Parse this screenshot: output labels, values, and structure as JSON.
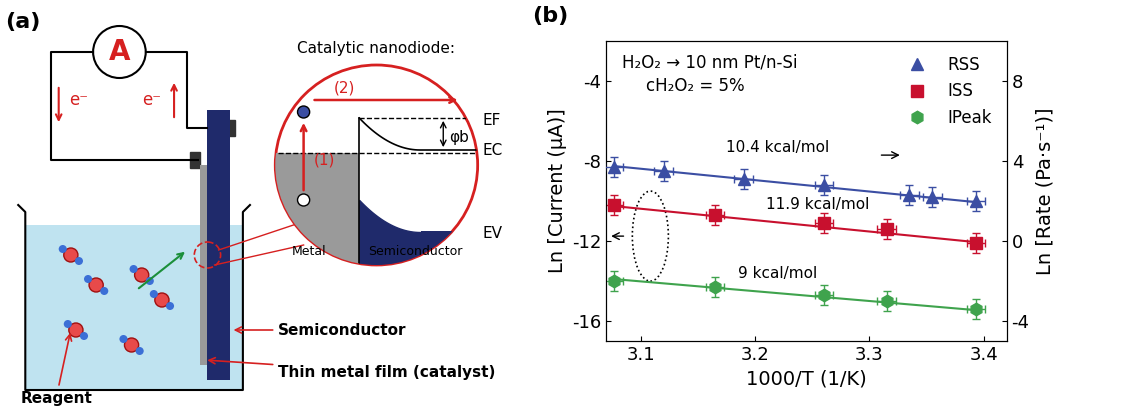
{
  "panel_a": {
    "label": "(a)",
    "ammeter": "A",
    "electrons": [
      "e⁻",
      "e⁻"
    ],
    "inset_title": "Catalytic nanodiode:",
    "steps": [
      "(1)",
      "(2)"
    ],
    "barrier": "φb",
    "levels": [
      "EC",
      "EF",
      "EV"
    ],
    "inset_metal": "Metal",
    "inset_semiconductor": "Semiconductor",
    "semiconductor": "Semiconductor",
    "film": "Thin metal film (catalyst)",
    "reagent": "Reagent"
  },
  "chart_data": {
    "type": "scatter",
    "panel_label": "(b)",
    "annotations": [
      "H₂O₂ → 10 nm Pt/n-Si",
      "cH₂O₂ = 5%"
    ],
    "xlabel": "1000/T (1/K)",
    "ylabel": "Ln [Current (μA)]",
    "y2label": "Ln [Rate (Pa·s⁻¹)]",
    "xlim": [
      3.07,
      3.42
    ],
    "xticks": [
      3.1,
      3.2,
      3.3,
      3.4
    ],
    "ylim": [
      -17,
      -2
    ],
    "yticks": [
      -16,
      -12,
      -8,
      -4
    ],
    "y2lim": [
      -5,
      10
    ],
    "y2ticks": [
      -4,
      0,
      4,
      8
    ],
    "legend": "upper right",
    "series": [
      {
        "name": "RSS",
        "color": "#3b4ea3",
        "marker": "triangle",
        "axis": "y2",
        "x": [
          3.077,
          3.12,
          3.19,
          3.26,
          3.335,
          3.355,
          3.393
        ],
        "values": [
          3.7,
          3.5,
          3.1,
          2.8,
          2.3,
          2.2,
          2.0
        ],
        "x_error": 0.008,
        "y_error": 0.5,
        "fit_x": [
          3.077,
          3.393
        ],
        "fit_values": [
          3.75,
          1.95
        ],
        "slope_label": "10.4 kcal/mol"
      },
      {
        "name": "ISS",
        "color": "#c8102e",
        "marker": "square",
        "axis": "y",
        "x": [
          3.077,
          3.165,
          3.26,
          3.315,
          3.393
        ],
        "values": [
          -10.2,
          -10.7,
          -11.1,
          -11.4,
          -12.1
        ],
        "x_error": 0.008,
        "y_error": 0.5,
        "fit_x": [
          3.077,
          3.393
        ],
        "fit_values": [
          -10.25,
          -12.05
        ],
        "slope_label": "11.9 kcal/mol"
      },
      {
        "name": "IPeak",
        "color": "#3fa34d",
        "marker": "hexagon",
        "axis": "y",
        "x": [
          3.077,
          3.165,
          3.26,
          3.315,
          3.393
        ],
        "values": [
          -14.0,
          -14.3,
          -14.7,
          -15.0,
          -15.4
        ],
        "x_error": 0.008,
        "y_error": 0.5,
        "fit_x": [
          3.077,
          3.393
        ],
        "fit_values": [
          -13.9,
          -15.45
        ],
        "slope_label": "9 kcal/mol"
      }
    ]
  }
}
